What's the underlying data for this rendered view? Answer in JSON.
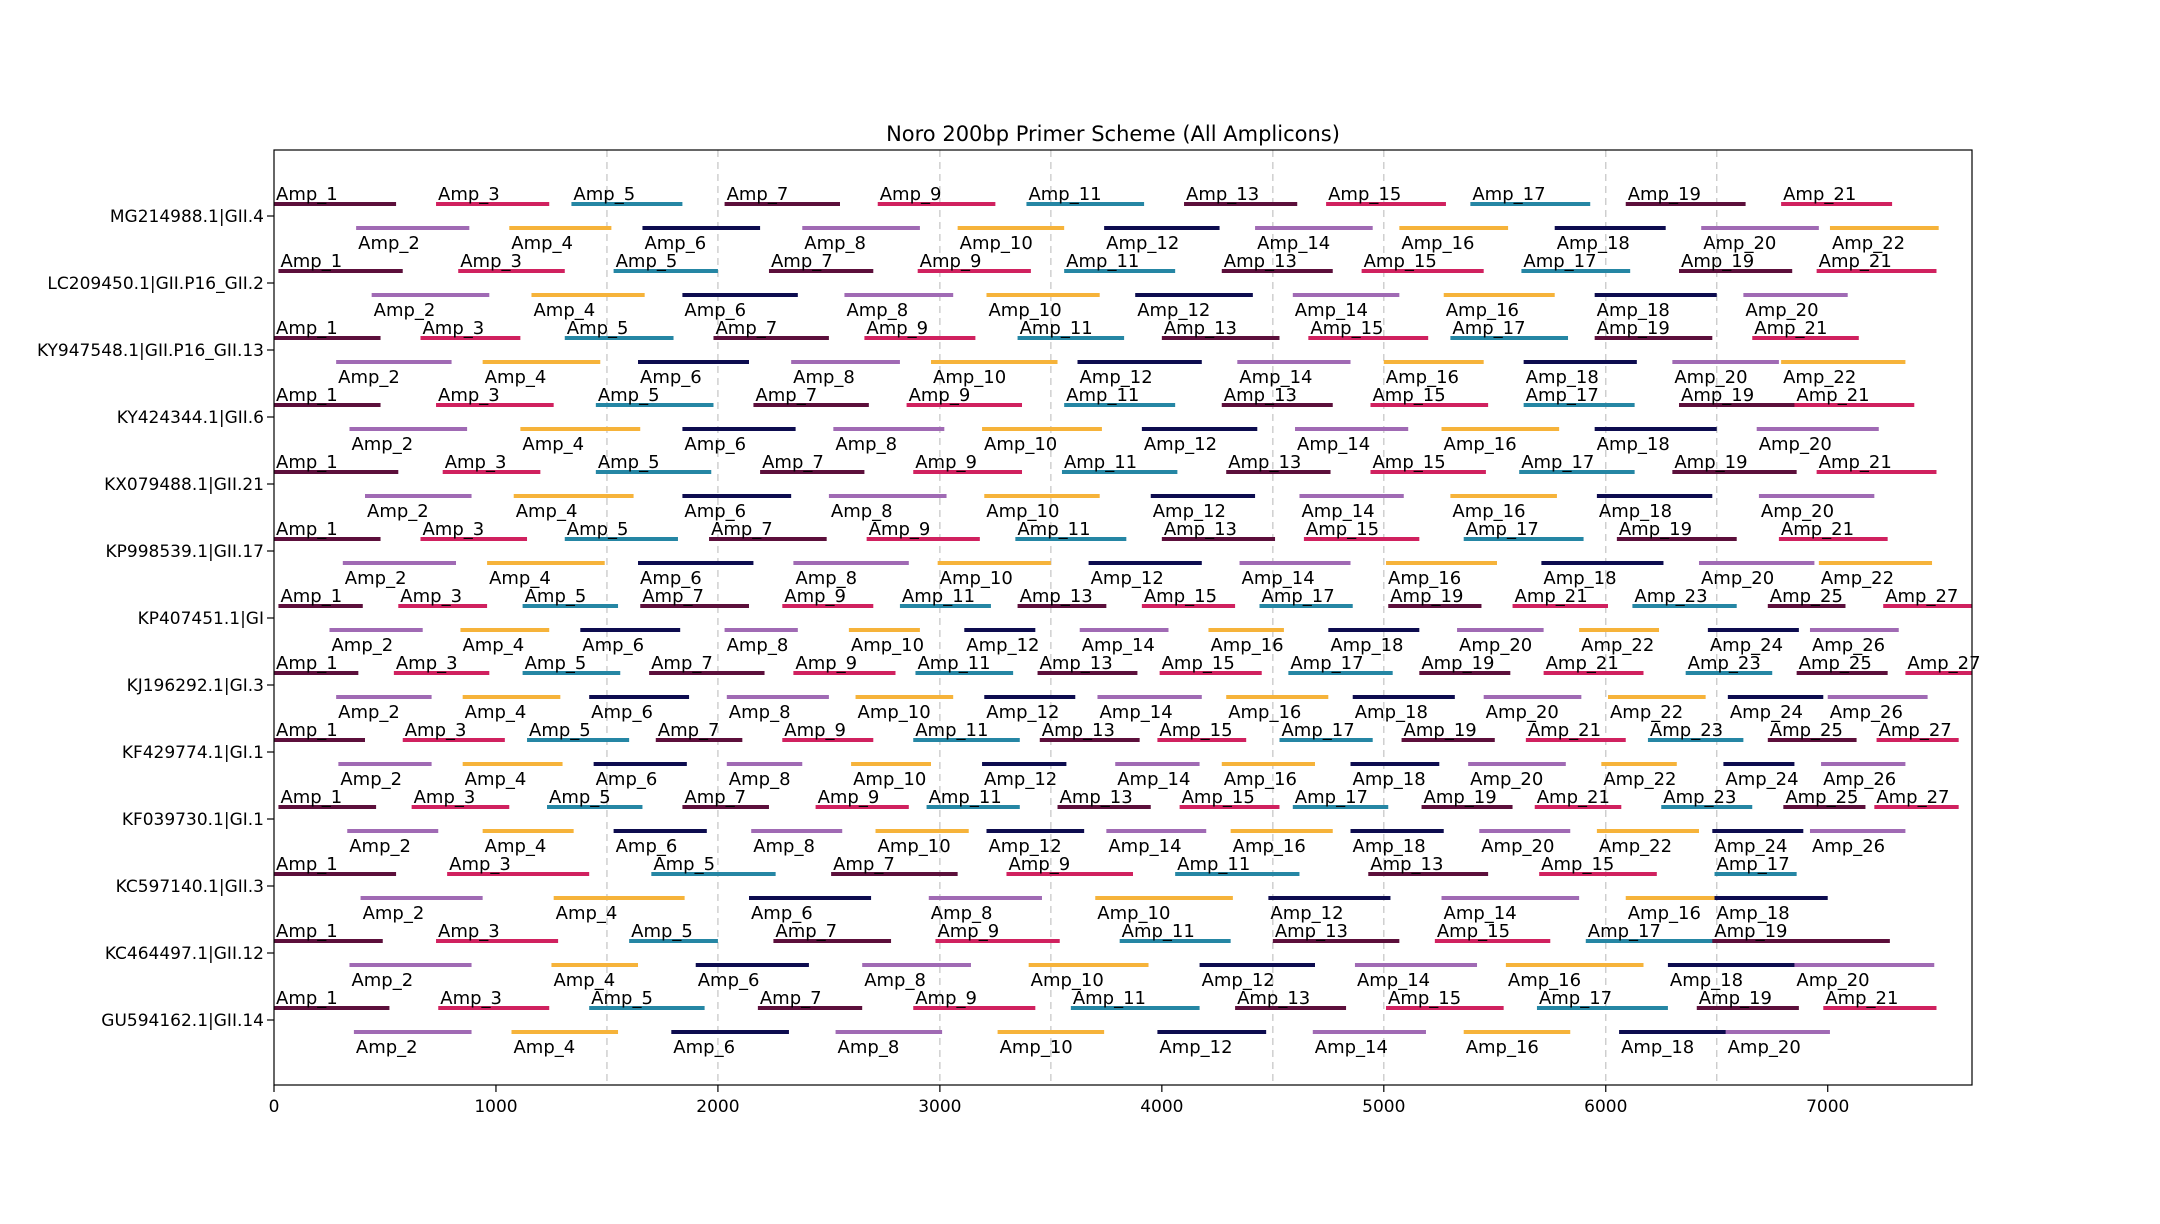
{
  "chart_data": {
    "type": "bar",
    "title": "Noro 200bp Primer Scheme (All Amplicons)",
    "xlabel": "",
    "ylabel": "",
    "xlim": [
      0,
      7650
    ],
    "xticks": [
      0,
      1000,
      2000,
      3000,
      4000,
      5000,
      6000,
      7000
    ],
    "vlines": [
      1500,
      2000,
      3000,
      3500,
      4500,
      5000,
      6000,
      6500
    ],
    "grid": false,
    "palette": [
      "#5c0f3b",
      "#a06ab4",
      "#d0215f",
      "#f6b33a",
      "#2586a4",
      "#0d0c4f"
    ],
    "series": [
      {
        "name": "MG214988.1|GII.4",
        "starts": [
          0,
          370,
          730,
          1060,
          1340,
          1660,
          2030,
          2380,
          2720,
          3080,
          3390,
          3740,
          4100,
          4420,
          4740,
          5070,
          5390,
          5770,
          6090,
          6430,
          6790,
          7010
        ],
        "ends": [
          550,
          880,
          1240,
          1520,
          1840,
          2190,
          2550,
          2910,
          3250,
          3560,
          3920,
          4260,
          4610,
          4950,
          5280,
          5560,
          5930,
          6270,
          6630,
          6960,
          7290,
          7500
        ]
      },
      {
        "name": "LC209450.1|GII.P16_GII.2",
        "starts": [
          20,
          440,
          830,
          1160,
          1530,
          1840,
          2230,
          2570,
          2900,
          3210,
          3560,
          3880,
          4270,
          4590,
          4900,
          5270,
          5620,
          5950,
          6330,
          6620,
          6950
        ],
        "ends": [
          580,
          970,
          1310,
          1670,
          2000,
          2360,
          2700,
          3060,
          3410,
          3720,
          4060,
          4410,
          4770,
          5070,
          5450,
          5770,
          6110,
          6500,
          6840,
          7090,
          7490
        ]
      },
      {
        "name": "KY947548.1|GII.P16_GII.13",
        "starts": [
          0,
          280,
          660,
          940,
          1310,
          1640,
          1980,
          2330,
          2660,
          2960,
          3350,
          3620,
          4000,
          4340,
          4660,
          5000,
          5300,
          5630,
          5950,
          6300,
          6660,
          6790
        ],
        "ends": [
          480,
          800,
          1110,
          1470,
          1800,
          2140,
          2500,
          2820,
          3160,
          3530,
          3830,
          4180,
          4530,
          4850,
          5200,
          5450,
          5830,
          6140,
          6480,
          6780,
          7140,
          7350
        ]
      },
      {
        "name": "KY424344.1|GII.6",
        "starts": [
          0,
          340,
          730,
          1110,
          1450,
          1840,
          2160,
          2520,
          2850,
          3190,
          3560,
          3910,
          4270,
          4600,
          4940,
          5260,
          5630,
          5950,
          6330,
          6680,
          6850
        ],
        "ends": [
          480,
          870,
          1260,
          1650,
          1980,
          2350,
          2680,
          3020,
          3370,
          3730,
          4060,
          4430,
          4770,
          5110,
          5470,
          5790,
          6130,
          6500,
          6860,
          7230,
          7390
        ]
      },
      {
        "name": "KX079488.1|GII.21",
        "starts": [
          0,
          410,
          760,
          1080,
          1450,
          1840,
          2190,
          2500,
          2880,
          3200,
          3550,
          3950,
          4290,
          4620,
          4940,
          5300,
          5610,
          5960,
          6300,
          6690,
          6950
        ],
        "ends": [
          560,
          890,
          1200,
          1620,
          1970,
          2330,
          2660,
          3030,
          3370,
          3720,
          4070,
          4420,
          4760,
          5090,
          5460,
          5780,
          6130,
          6480,
          6860,
          7210,
          7490
        ]
      },
      {
        "name": "KP998539.1|GII.17",
        "starts": [
          0,
          310,
          660,
          960,
          1310,
          1640,
          1960,
          2340,
          2670,
          2990,
          3340,
          3670,
          4000,
          4350,
          4640,
          5010,
          5360,
          5710,
          6050,
          6420,
          6780,
          6960
        ],
        "ends": [
          480,
          820,
          1140,
          1490,
          1820,
          2160,
          2490,
          2860,
          3180,
          3500,
          3840,
          4180,
          4510,
          4850,
          5160,
          5510,
          5900,
          6260,
          6590,
          6940,
          7270,
          7470
        ]
      },
      {
        "name": "KP407451.1|GI",
        "starts": [
          20,
          250,
          560,
          840,
          1120,
          1380,
          1650,
          2030,
          2290,
          2590,
          2820,
          3110,
          3350,
          3630,
          3910,
          4210,
          4440,
          4750,
          5020,
          5330,
          5580,
          5880,
          6120,
          6460,
          6730,
          6920,
          7250
        ],
        "ends": [
          400,
          670,
          960,
          1240,
          1550,
          1830,
          2140,
          2360,
          2700,
          2910,
          3230,
          3430,
          3750,
          4030,
          4330,
          4550,
          4860,
          5160,
          5440,
          5720,
          6010,
          6240,
          6590,
          6870,
          7080,
          7320,
          7650
        ]
      },
      {
        "name": "KJ196292.1|GI.3",
        "starts": [
          0,
          280,
          540,
          850,
          1120,
          1420,
          1690,
          2040,
          2340,
          2620,
          2890,
          3200,
          3440,
          3710,
          3990,
          4290,
          4570,
          4860,
          5160,
          5450,
          5720,
          6010,
          6360,
          6550,
          6860,
          7000,
          7350
        ],
        "ends": [
          380,
          710,
          970,
          1290,
          1560,
          1870,
          2210,
          2500,
          2800,
          3060,
          3330,
          3610,
          3890,
          4180,
          4450,
          4750,
          5040,
          5320,
          5570,
          5890,
          6170,
          6450,
          6750,
          6980,
          7270,
          7450,
          7650
        ]
      },
      {
        "name": "KF429774.1|GI.1",
        "starts": [
          0,
          290,
          580,
          850,
          1140,
          1440,
          1720,
          2040,
          2290,
          2600,
          2880,
          3190,
          3450,
          3790,
          3980,
          4270,
          4530,
          4850,
          5080,
          5380,
          5640,
          5980,
          6190,
          6530,
          6730,
          6970,
          7220
        ],
        "ends": [
          410,
          710,
          1040,
          1300,
          1600,
          1860,
          2110,
          2380,
          2700,
          2960,
          3360,
          3570,
          3900,
          4170,
          4380,
          4690,
          4950,
          5250,
          5500,
          5820,
          6090,
          6320,
          6620,
          6850,
          7130,
          7350,
          7590
        ]
      },
      {
        "name": "KF039730.1|GI.1",
        "starts": [
          20,
          330,
          620,
          940,
          1230,
          1530,
          1840,
          2150,
          2440,
          2710,
          2940,
          3210,
          3530,
          3750,
          4080,
          4310,
          4590,
          4850,
          5170,
          5430,
          5680,
          5960,
          6250,
          6480,
          6800,
          6920,
          7210
        ],
        "ends": [
          460,
          740,
          1060,
          1350,
          1660,
          1950,
          2230,
          2560,
          2860,
          3130,
          3360,
          3650,
          3950,
          4200,
          4530,
          4770,
          5020,
          5270,
          5580,
          5840,
          6070,
          6420,
          6660,
          6890,
          7170,
          7350,
          7590
        ]
      },
      {
        "name": "KC597140.1|GII.3",
        "starts": [
          0,
          390,
          780,
          1260,
          1700,
          2140,
          2510,
          2950,
          3300,
          3700,
          4060,
          4480,
          4930,
          5260,
          5700,
          6090,
          6490,
          6490
        ],
        "ends": [
          550,
          940,
          1420,
          1850,
          2260,
          2690,
          3080,
          3460,
          3870,
          4320,
          4620,
          5030,
          5470,
          5880,
          6230,
          6580,
          6860,
          7000
        ]
      },
      {
        "name": "KC464497.1|GII.12",
        "starts": [
          0,
          340,
          730,
          1250,
          1600,
          1900,
          2250,
          2650,
          2980,
          3400,
          3810,
          4170,
          4500,
          4870,
          5230,
          5550,
          5910,
          6280,
          6480,
          6850
        ],
        "ends": [
          490,
          890,
          1280,
          1640,
          2000,
          2410,
          2780,
          3140,
          3540,
          3940,
          4310,
          4690,
          5070,
          5420,
          5750,
          6170,
          6570,
          6960,
          7280,
          7480
        ]
      },
      {
        "name": "GU594162.1|GII.14",
        "starts": [
          0,
          360,
          740,
          1070,
          1420,
          1790,
          2180,
          2530,
          2880,
          3260,
          3590,
          3980,
          4330,
          4680,
          5010,
          5360,
          5690,
          6060,
          6410,
          6540,
          6980
        ],
        "ends": [
          520,
          890,
          1240,
          1550,
          1940,
          2320,
          2650,
          3010,
          3430,
          3740,
          4170,
          4470,
          4830,
          5190,
          5540,
          5840,
          6280,
          6580,
          6870,
          7010,
          7490
        ]
      }
    ]
  }
}
